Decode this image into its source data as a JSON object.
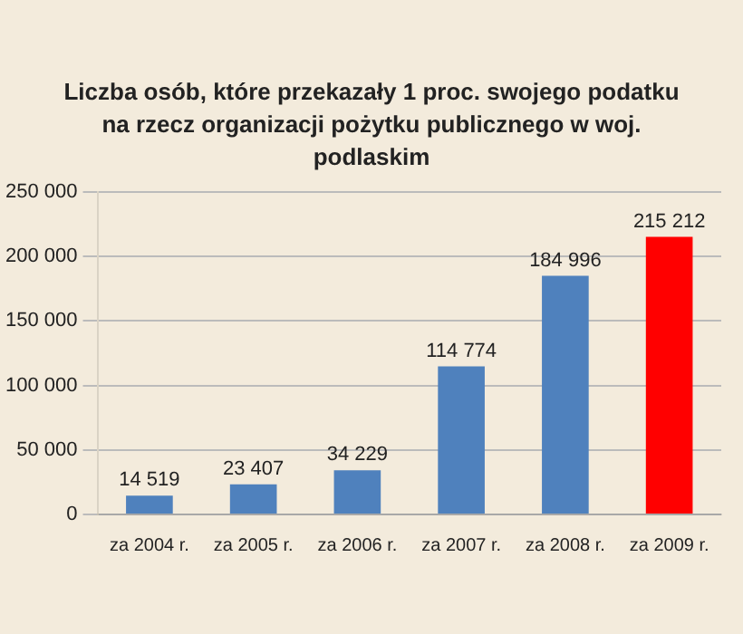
{
  "chart_data": {
    "type": "bar",
    "title": "Liczba osób, które przekazały 1 proc. swojego podatku na rzecz organizacji pożytku publicznego w woj. podlaskim",
    "categories": [
      "za 2004 r.",
      "za 2005 r.",
      "za 2006 r.",
      "za 2007 r.",
      "za 2008 r.",
      "za 2009 r."
    ],
    "values": [
      14519,
      23407,
      34229,
      114774,
      184996,
      215212
    ],
    "value_labels": [
      "14 519",
      "23 407",
      "34 229",
      "114 774",
      "184 996",
      "215 212"
    ],
    "colors": [
      "#4f81bd",
      "#4f81bd",
      "#4f81bd",
      "#4f81bd",
      "#4f81bd",
      "#ff0000"
    ],
    "ylim": [
      0,
      250000
    ],
    "yticks": [
      0,
      {
        "value": 50000,
        "label": "50 000"
      },
      {
        "value": 100000,
        "label": "100 000"
      },
      {
        "value": 150000,
        "label": "150 000"
      },
      {
        "value": 200000,
        "label": "200 000"
      },
      {
        "value": 250000,
        "label": "250 000"
      }
    ],
    "grid": "y",
    "legend": false
  }
}
